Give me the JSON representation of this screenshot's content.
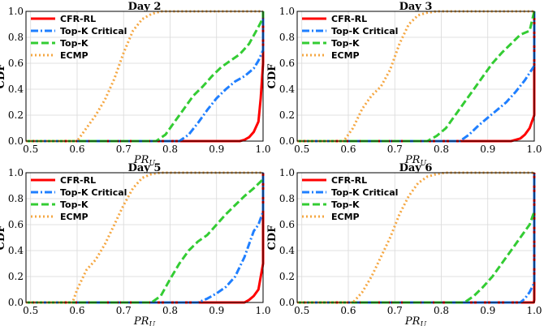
{
  "chart_data": [
    {
      "type": "line",
      "title": "Day 2",
      "xlabel": "PR",
      "xlabel_sub": "U",
      "ylabel": "CDF",
      "xlim": [
        0.49,
        1.0
      ],
      "ylim": [
        0.0,
        1.0
      ],
      "xticks": [
        "0.5",
        "0.6",
        "0.7",
        "0.8",
        "0.9",
        "1.0"
      ],
      "yticks": [
        "0.0",
        "0.2",
        "0.4",
        "0.6",
        "0.8",
        "1.0"
      ],
      "grid": true,
      "legend": "top-left",
      "series": [
        {
          "name": "CFR-RL",
          "color": "#ff0000",
          "dash": "solid",
          "x": [
            0.49,
            0.95,
            0.96,
            0.97,
            0.98,
            0.99,
            0.995,
            1.0,
            1.0
          ],
          "y": [
            0.0,
            0.0,
            0.01,
            0.03,
            0.07,
            0.15,
            0.33,
            0.6,
            1.0
          ]
        },
        {
          "name": "Top-K Critical",
          "color": "#1f7fff",
          "dash": "dashdot",
          "x": [
            0.49,
            0.82,
            0.84,
            0.86,
            0.88,
            0.9,
            0.92,
            0.94,
            0.96,
            0.98,
            0.99,
            1.0,
            1.0
          ],
          "y": [
            0.0,
            0.0,
            0.05,
            0.14,
            0.24,
            0.33,
            0.4,
            0.46,
            0.5,
            0.56,
            0.62,
            0.7,
            1.0
          ]
        },
        {
          "name": "Top-K",
          "color": "#33cc33",
          "dash": "dashed",
          "x": [
            0.49,
            0.77,
            0.79,
            0.81,
            0.83,
            0.85,
            0.87,
            0.89,
            0.91,
            0.93,
            0.95,
            0.97,
            0.99,
            1.0,
            1.0
          ],
          "y": [
            0.0,
            0.0,
            0.05,
            0.15,
            0.25,
            0.35,
            0.42,
            0.5,
            0.57,
            0.62,
            0.67,
            0.75,
            0.88,
            0.95,
            1.0
          ]
        },
        {
          "name": "ECMP",
          "color": "#f5a742",
          "dash": "dotted",
          "x": [
            0.49,
            0.6,
            0.62,
            0.64,
            0.66,
            0.68,
            0.7,
            0.72,
            0.74,
            0.76,
            0.78,
            0.8,
            1.0
          ],
          "y": [
            0.0,
            0.0,
            0.1,
            0.2,
            0.32,
            0.48,
            0.68,
            0.85,
            0.94,
            0.98,
            1.0,
            1.0,
            1.0
          ]
        }
      ]
    },
    {
      "type": "line",
      "title": "Day 3",
      "xlabel": "PR",
      "xlabel_sub": "U",
      "ylabel": "CDF",
      "xlim": [
        0.49,
        1.0
      ],
      "ylim": [
        0.0,
        1.0
      ],
      "xticks": [
        "0.5",
        "0.6",
        "0.7",
        "0.8",
        "0.9",
        "1.0"
      ],
      "yticks": [
        "0.0",
        "0.2",
        "0.4",
        "0.6",
        "0.8",
        "1.0"
      ],
      "grid": true,
      "legend": "top-left",
      "series": [
        {
          "name": "CFR-RL",
          "color": "#ff0000",
          "dash": "solid",
          "x": [
            0.49,
            0.95,
            0.97,
            0.98,
            0.99,
            1.0,
            1.0
          ],
          "y": [
            0.0,
            0.0,
            0.02,
            0.05,
            0.1,
            0.2,
            1.0
          ]
        },
        {
          "name": "Top-K Critical",
          "color": "#1f7fff",
          "dash": "dashdot",
          "x": [
            0.49,
            0.84,
            0.86,
            0.88,
            0.9,
            0.92,
            0.94,
            0.96,
            0.98,
            1.0,
            1.0
          ],
          "y": [
            0.0,
            0.0,
            0.05,
            0.12,
            0.18,
            0.24,
            0.3,
            0.38,
            0.47,
            0.58,
            1.0
          ]
        },
        {
          "name": "Top-K",
          "color": "#33cc33",
          "dash": "dashed",
          "x": [
            0.49,
            0.77,
            0.79,
            0.81,
            0.83,
            0.85,
            0.87,
            0.89,
            0.91,
            0.93,
            0.95,
            0.97,
            0.99,
            1.0
          ],
          "y": [
            0.0,
            0.0,
            0.04,
            0.1,
            0.2,
            0.3,
            0.4,
            0.5,
            0.6,
            0.68,
            0.75,
            0.82,
            0.85,
            1.0
          ]
        },
        {
          "name": "ECMP",
          "color": "#f5a742",
          "dash": "dotted",
          "x": [
            0.49,
            0.59,
            0.61,
            0.63,
            0.65,
            0.67,
            0.69,
            0.71,
            0.73,
            0.75,
            0.77,
            0.79,
            1.0
          ],
          "y": [
            0.0,
            0.0,
            0.1,
            0.25,
            0.35,
            0.42,
            0.55,
            0.75,
            0.9,
            0.97,
            0.99,
            1.0,
            1.0
          ]
        }
      ]
    },
    {
      "type": "line",
      "title": "Day 5",
      "xlabel": "PR",
      "xlabel_sub": "U",
      "ylabel": "CDF",
      "xlim": [
        0.49,
        1.0
      ],
      "ylim": [
        0.0,
        1.0
      ],
      "xticks": [
        "0.5",
        "0.6",
        "0.7",
        "0.8",
        "0.9",
        "1.0"
      ],
      "yticks": [
        "0.0",
        "0.2",
        "0.4",
        "0.6",
        "0.8",
        "1.0"
      ],
      "grid": true,
      "legend": "top-left",
      "series": [
        {
          "name": "CFR-RL",
          "color": "#ff0000",
          "dash": "solid",
          "x": [
            0.49,
            0.96,
            0.97,
            0.98,
            0.99,
            1.0,
            1.0
          ],
          "y": [
            0.0,
            0.0,
            0.02,
            0.05,
            0.1,
            0.3,
            1.0
          ]
        },
        {
          "name": "Top-K Critical",
          "color": "#1f7fff",
          "dash": "dashdot",
          "x": [
            0.49,
            0.86,
            0.88,
            0.9,
            0.92,
            0.94,
            0.96,
            0.97,
            0.98,
            0.99,
            1.0,
            1.0
          ],
          "y": [
            0.0,
            0.0,
            0.03,
            0.07,
            0.12,
            0.2,
            0.35,
            0.45,
            0.55,
            0.6,
            0.7,
            1.0
          ]
        },
        {
          "name": "Top-K",
          "color": "#33cc33",
          "dash": "dashed",
          "x": [
            0.49,
            0.76,
            0.78,
            0.8,
            0.82,
            0.84,
            0.86,
            0.88,
            0.9,
            0.92,
            0.94,
            0.96,
            0.98,
            1.0
          ],
          "y": [
            0.0,
            0.0,
            0.05,
            0.18,
            0.3,
            0.4,
            0.47,
            0.52,
            0.6,
            0.68,
            0.75,
            0.82,
            0.88,
            0.95
          ]
        },
        {
          "name": "ECMP",
          "color": "#f5a742",
          "dash": "dotted",
          "x": [
            0.49,
            0.59,
            0.6,
            0.62,
            0.64,
            0.66,
            0.68,
            0.7,
            0.72,
            0.74,
            0.76,
            0.78,
            1.0
          ],
          "y": [
            0.0,
            0.0,
            0.1,
            0.25,
            0.33,
            0.45,
            0.6,
            0.75,
            0.88,
            0.96,
            0.99,
            1.0,
            1.0
          ]
        }
      ]
    },
    {
      "type": "line",
      "title": "Day 6",
      "xlabel": "PR",
      "xlabel_sub": "U",
      "ylabel": "CDF",
      "xlim": [
        0.49,
        1.0
      ],
      "ylim": [
        0.0,
        1.0
      ],
      "xticks": [
        "0.5",
        "0.6",
        "0.7",
        "0.8",
        "0.9",
        "1.0"
      ],
      "yticks": [
        "0.0",
        "0.2",
        "0.4",
        "0.6",
        "0.8",
        "1.0"
      ],
      "grid": true,
      "legend": "top-left",
      "series": [
        {
          "name": "CFR-RL",
          "color": "#ff0000",
          "dash": "solid",
          "x": [
            0.49,
            0.999,
            1.0,
            1.0
          ],
          "y": [
            0.0,
            0.0,
            0.02,
            1.0
          ]
        },
        {
          "name": "Top-K Critical",
          "color": "#1f7fff",
          "dash": "dashdot",
          "x": [
            0.49,
            0.97,
            0.98,
            0.99,
            1.0,
            1.0
          ],
          "y": [
            0.0,
            0.0,
            0.03,
            0.08,
            0.15,
            1.0
          ]
        },
        {
          "name": "Top-K",
          "color": "#33cc33",
          "dash": "dashed",
          "x": [
            0.49,
            0.85,
            0.87,
            0.89,
            0.91,
            0.93,
            0.95,
            0.97,
            0.99,
            1.0
          ],
          "y": [
            0.0,
            0.0,
            0.05,
            0.12,
            0.2,
            0.3,
            0.4,
            0.5,
            0.6,
            0.7
          ]
        },
        {
          "name": "ECMP",
          "color": "#f5a742",
          "dash": "dotted",
          "x": [
            0.49,
            0.61,
            0.63,
            0.65,
            0.67,
            0.69,
            0.71,
            0.73,
            0.75,
            0.77,
            0.79,
            0.81,
            1.0
          ],
          "y": [
            0.0,
            0.0,
            0.08,
            0.2,
            0.35,
            0.5,
            0.68,
            0.82,
            0.92,
            0.97,
            0.99,
            1.0,
            1.0
          ]
        }
      ]
    }
  ]
}
